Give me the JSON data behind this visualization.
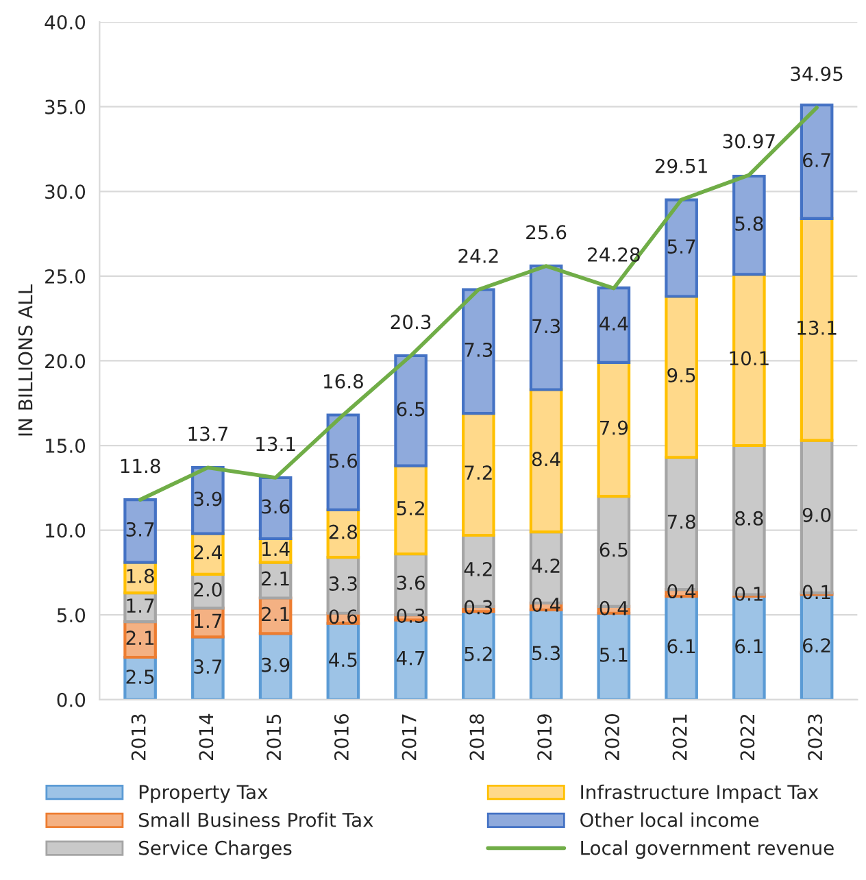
{
  "chart_data": {
    "type": "bar",
    "stacked": true,
    "ylabel": "IN BILLIONS ALL",
    "categories": [
      "2013",
      "2014",
      "2015",
      "2016",
      "2017",
      "2018",
      "2019",
      "2020",
      "2021",
      "2022",
      "2023"
    ],
    "series": [
      {
        "name": "Pproperty Tax",
        "color": "#9dc3e6",
        "values": [
          2.5,
          3.7,
          3.9,
          4.5,
          4.7,
          5.2,
          5.3,
          5.1,
          6.1,
          6.1,
          6.2
        ],
        "value_labels": [
          "2.5",
          "3.7",
          "3.9",
          "4.5",
          "4.7",
          "5.2",
          "5.3",
          "5.1",
          "6.1",
          "6.1",
          "6.2"
        ]
      },
      {
        "name": "Small Business Profit Tax",
        "color": "#f4b183",
        "values": [
          2.1,
          1.7,
          2.1,
          0.6,
          0.3,
          0.3,
          0.4,
          0.4,
          0.4,
          0.1,
          0.1
        ],
        "value_labels": [
          "2.1",
          "1.7",
          "2.1",
          "0.6",
          "0.3",
          "0.3",
          "0.4",
          "0.4",
          "0.4",
          "0.1",
          "0.1"
        ]
      },
      {
        "name": "Service Charges",
        "color": "#c9c9c9",
        "values": [
          1.7,
          2.0,
          2.1,
          3.3,
          3.6,
          4.2,
          4.2,
          6.5,
          7.8,
          8.8,
          9.0
        ],
        "value_labels": [
          "1.7",
          "2.0",
          "2.1",
          "3.3",
          "3.6",
          "4.2",
          "4.2",
          "6.5",
          "7.8",
          "8.8",
          "9.0"
        ]
      },
      {
        "name": "Infrastructure Impact Tax",
        "color": "#ffd98a",
        "values": [
          1.8,
          2.4,
          1.4,
          2.8,
          5.2,
          7.2,
          8.4,
          7.9,
          9.5,
          10.1,
          13.1
        ],
        "value_labels": [
          "1.8",
          "2.4",
          "1.4",
          "2.8",
          "5.2",
          "7.2",
          "8.4",
          "7.9",
          "9.5",
          "10.1",
          "13.1"
        ]
      },
      {
        "name": "Other local income",
        "color": "#8faadc",
        "values": [
          3.7,
          3.9,
          3.6,
          5.6,
          6.5,
          7.3,
          7.3,
          4.4,
          5.7,
          5.8,
          6.7
        ],
        "value_labels": [
          "3.7",
          "3.9",
          "3.6",
          "5.6",
          "6.5",
          "7.3",
          "7.3",
          "4.4",
          "5.7",
          "5.8",
          "6.7"
        ]
      },
      {
        "name": "Local government revenue",
        "type": "line",
        "color": "#70ad47",
        "values": [
          11.8,
          13.7,
          13.1,
          16.8,
          20.3,
          24.2,
          25.6,
          24.28,
          29.51,
          30.97,
          34.95
        ],
        "value_labels": [
          "11.8",
          "13.7",
          "13.1",
          "16.8",
          "20.3",
          "24.2",
          "25.6",
          "24.28",
          "29.51",
          "30.97",
          "34.95"
        ]
      }
    ],
    "ylim": [
      0,
      40
    ],
    "yticks": [
      {
        "value": 0,
        "label": "0.0"
      },
      {
        "value": 5,
        "label": "5.0"
      },
      {
        "value": 10,
        "label": "10.0"
      },
      {
        "value": 15,
        "label": "15.0"
      },
      {
        "value": 20,
        "label": "20.0"
      },
      {
        "value": 25,
        "label": "25.0"
      },
      {
        "value": 30,
        "label": "30.0"
      },
      {
        "value": 35,
        "label": "35.0"
      },
      {
        "value": 40,
        "label": "40.0"
      }
    ],
    "grid": "y",
    "legend": "bottom"
  }
}
